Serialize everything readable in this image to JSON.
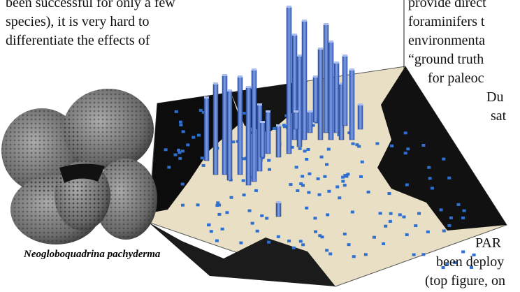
{
  "left_column": {
    "lines": [
      "been successful for only a few",
      "species), it is very hard to",
      "differentiate the effects of"
    ]
  },
  "right_column": {
    "lines": [
      "provide direct",
      "foraminifers t",
      "environmenta",
      "“ground truth",
      "for paleoc",
      "Du",
      "sat"
    ]
  },
  "figure": {
    "caption": "Neogloboquadrina pachyderma"
  },
  "bottom_right": {
    "lines": [
      "PAR",
      "been deploy",
      "(top figure, on"
    ]
  }
}
